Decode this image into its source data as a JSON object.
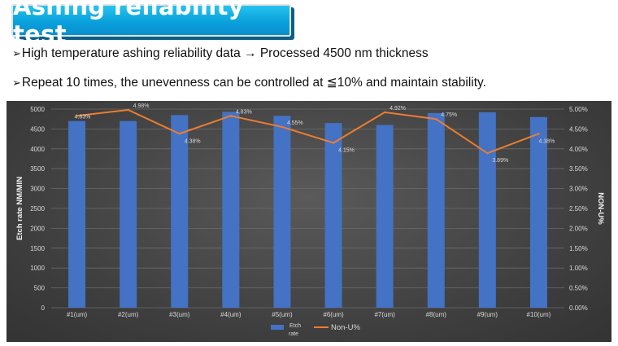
{
  "slide": {
    "title": "Ashing reliability test",
    "bullets": [
      {
        "marker": "➢",
        "text": "High temperature ashing reliability data → Processed 4500 nm thickness"
      },
      {
        "marker": "➢",
        "text": "Repeat 10 times, the unevenness can be controlled at ≦10% and maintain stability."
      }
    ]
  },
  "colors": {
    "bar": "#4472c4",
    "line": "#ed7d31",
    "grid": "#6b6b6b",
    "title_banner": "#0aa1dc"
  },
  "chart_data": {
    "type": "bar",
    "categories": [
      "#1(um)",
      "#2(um)",
      "#3(um)",
      "#4(um)",
      "#5(um)",
      "#6(um)",
      "#7(um)",
      "#8(um)",
      "#9(um)",
      "#10(um)"
    ],
    "series": [
      {
        "name": "Etch rate",
        "type": "bar",
        "axis": "left",
        "values": [
          4700,
          4700,
          4850,
          4930,
          4830,
          4650,
          4600,
          4900,
          4920,
          4800
        ]
      },
      {
        "name": "Non-U%",
        "type": "line",
        "axis": "right",
        "values": [
          4.83,
          4.98,
          4.38,
          4.83,
          4.55,
          4.15,
          4.92,
          4.75,
          3.89,
          4.38
        ],
        "labels": [
          "4.83%",
          "4.98%",
          "4.38%",
          "4.83%",
          "4.55%",
          "4.15%",
          "4.92%",
          "4.75%",
          "3.89%",
          "4.38%"
        ]
      }
    ],
    "ylabel": "Etch rate NM/MIN",
    "ylabel_right": "NON-U%",
    "ylim": [
      0,
      5000
    ],
    "yticks": [
      "0",
      "500",
      "1000",
      "1500",
      "2000",
      "2500",
      "3000",
      "3500",
      "4000",
      "4500",
      "5000"
    ],
    "ylim_right": [
      0,
      5.0
    ],
    "yticks_right": [
      "0.00%",
      "0.50%",
      "1.00%",
      "1.50%",
      "2.00%",
      "2.50%",
      "3.00%",
      "3.50%",
      "4.00%",
      "4.50%",
      "5.00%"
    ],
    "legend": {
      "position": "bottom",
      "bar_label_line1": "Etch",
      "bar_label_line2": "rate",
      "line_label": "Non-U%"
    },
    "grid": true
  }
}
